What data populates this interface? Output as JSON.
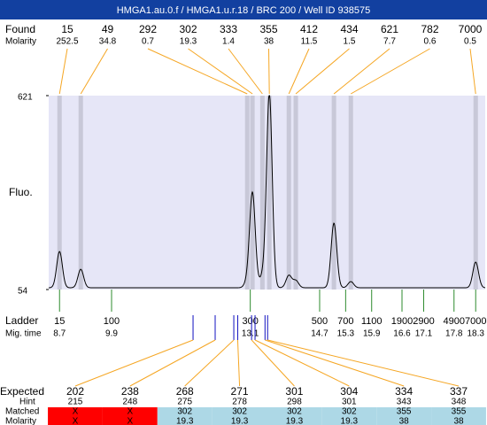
{
  "title": "HMGA1.au.0.f / HMGA1.u.r.18 / BRC 200 / Well ID 938575",
  "found": {
    "label": "Found",
    "molarity_label": "Molarity",
    "peaks": [
      {
        "size": 15,
        "molarity": 252.5,
        "mig_time": 8.7,
        "height": 160
      },
      {
        "size": 49,
        "molarity": 34.8,
        "mig_time": 9.19,
        "height": 108
      },
      {
        "size": 292,
        "molarity": 0.7,
        "mig_time": 13.03,
        "height": 70
      },
      {
        "size": 302,
        "molarity": 19.3,
        "mig_time": 13.15,
        "height": 331
      },
      {
        "size": 333,
        "molarity": 1.4,
        "mig_time": 13.38,
        "height": 85
      },
      {
        "size": 355,
        "molarity": 38,
        "mig_time": 13.54,
        "height": 621
      },
      {
        "size": 412,
        "molarity": 11.5,
        "mig_time": 13.99,
        "height": 90
      },
      {
        "size": 434,
        "molarity": 1.5,
        "mig_time": 14.15,
        "height": 75
      },
      {
        "size": 621,
        "molarity": 7.7,
        "mig_time": 15.03,
        "height": 243
      },
      {
        "size": 782,
        "molarity": 0.6,
        "mig_time": 15.42,
        "height": 72
      },
      {
        "size": 7000,
        "molarity": 0.5,
        "mig_time": 18.3,
        "height": 129
      }
    ]
  },
  "plot": {
    "ylabel": "Fluo.",
    "ylim": [
      54,
      621
    ],
    "yticks": [
      54,
      621
    ],
    "xlim": [
      8.45,
      18.52
    ],
    "color": "#000000",
    "background": "#e6e6f7",
    "band_color": "#c8c8d8"
  },
  "ladder": {
    "label": "Ladder",
    "time_label": "Mig. time",
    "markers": [
      {
        "size": 15,
        "mig_time": 8.7
      },
      {
        "size": 100,
        "mig_time": 9.9
      },
      {
        "size": 300,
        "mig_time": 13.1
      },
      {
        "size": 500,
        "mig_time": 14.7
      },
      {
        "size": 700,
        "mig_time": 15.3
      },
      {
        "size": 1100,
        "mig_time": 15.9
      },
      {
        "size": 1900,
        "mig_time": 16.6
      },
      {
        "size": 2900,
        "mig_time": 17.1
      },
      {
        "size": 4900,
        "mig_time": 17.8
      },
      {
        "size": 7000,
        "mig_time": 18.3
      }
    ]
  },
  "expected": {
    "label": "Expected",
    "hint_label": "Hint",
    "matched_label": "Matched",
    "molarity_label": "Molarity",
    "items": [
      {
        "size": 202,
        "hint": 215,
        "matched": "X",
        "molarity": "X",
        "mig_time": 11.78,
        "color": "#ff0000"
      },
      {
        "size": 238,
        "hint": 248,
        "matched": "X",
        "molarity": "X",
        "mig_time": 12.29,
        "color": "#ff0000"
      },
      {
        "size": 268,
        "hint": 275,
        "matched": 302,
        "molarity": 19.3,
        "mig_time": 12.72,
        "color": "#add8e6"
      },
      {
        "size": 271,
        "hint": 278,
        "matched": 302,
        "molarity": 19.3,
        "mig_time": 12.81,
        "color": "#add8e6"
      },
      {
        "size": 301,
        "hint": 298,
        "matched": 302,
        "molarity": 19.3,
        "mig_time": 13.13,
        "color": "#add8e6"
      },
      {
        "size": 304,
        "hint": 301,
        "matched": 302,
        "molarity": 19.3,
        "mig_time": 13.21,
        "color": "#add8e6"
      },
      {
        "size": 334,
        "hint": 343,
        "matched": 355,
        "molarity": 38,
        "mig_time": 13.44,
        "color": "#add8e6"
      },
      {
        "size": 337,
        "hint": 348,
        "matched": 355,
        "molarity": 38,
        "mig_time": 13.5,
        "color": "#add8e6"
      }
    ]
  }
}
